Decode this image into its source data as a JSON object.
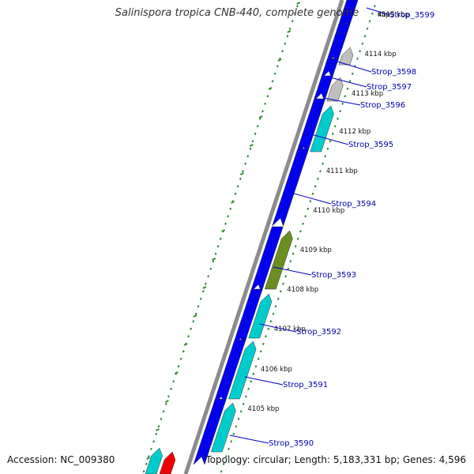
{
  "title": "Salinispora tropica CNB-440, complete genome",
  "accession": "Accession: NC_009380",
  "topology": "Topology: circular; Length: 5,183,331 bp; Genes: 4,596",
  "colors": {
    "backbone": "#8c8c8c",
    "gene_forward": "#0000ee",
    "gene_cyan": "#00cccc",
    "gene_grey": "#bfbfbf",
    "gene_olive": "#6b8e23",
    "gene_red": "#ee0000",
    "tick": "#2e8b2e",
    "label": "#0000aa",
    "label_line": "#0000cc"
  },
  "kbp_ticks": [
    "4105 kbp",
    "4106 kbp",
    "4107 kbp",
    "4108 kbp",
    "4109 kbp",
    "4110 kbp",
    "4111 kbp",
    "4112 kbp",
    "4113 kbp",
    "4114 kbp",
    "4115 kbp",
    "kbp"
  ],
  "gene_labels": [
    "Strop_3590",
    "Strop_3591",
    "Strop_3592",
    "Strop_3593",
    "Strop_3594",
    "Strop_3595",
    "Strop_3596",
    "Strop_3597",
    "Strop_3598",
    "Strop_3599"
  ]
}
